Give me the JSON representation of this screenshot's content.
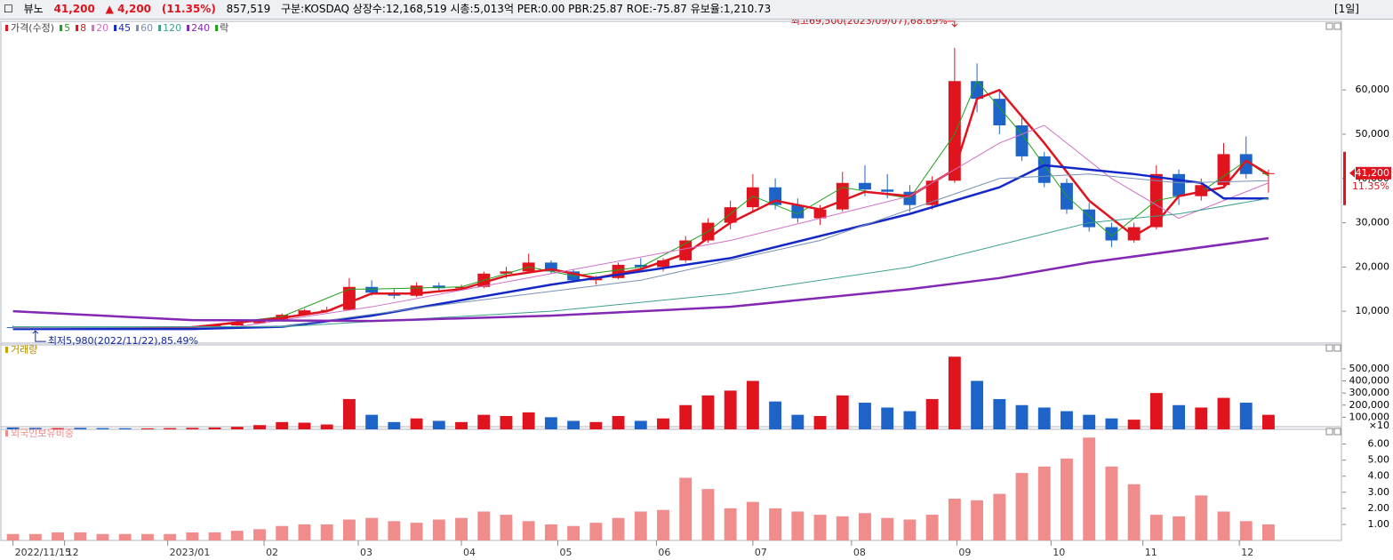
{
  "header": {
    "name": "뷰노",
    "price": "41,200",
    "change": "▲ 4,200",
    "rate": "(11.35%)",
    "volume": "857,519",
    "info": "구분:KOSDAQ 상장수:12,168,519 시총:5,013억 PER:0.00 PBR:25.87 ROE:-75.87 유보율:1,210.73",
    "period": "[1일]"
  },
  "chart_data": [
    {
      "type": "candlestick",
      "legend_title": "가격(수정)",
      "legend_extra": "락",
      "up_color": "#e0141e",
      "down_color": "#1e64c8",
      "ylim": [
        2400,
        74300
      ],
      "yticks": [
        {
          "value": 10000,
          "label": "10,000"
        },
        {
          "value": 20000,
          "label": "20,000"
        },
        {
          "value": 30000,
          "label": "30,000"
        },
        {
          "value": 40000,
          "label": "40,000"
        },
        {
          "value": 50000,
          "label": "50,000"
        },
        {
          "value": 60000,
          "label": "60,000"
        }
      ],
      "xlim": [
        -0.5,
        58.5
      ],
      "xticks": [
        {
          "value": 0,
          "label": "2022/11/15"
        },
        {
          "value": 2.3,
          "label": "12"
        },
        {
          "value": 6.9,
          "label": "2023/01"
        },
        {
          "value": 11.2,
          "label": "02"
        },
        {
          "value": 15.4,
          "label": "03"
        },
        {
          "value": 20,
          "label": "04"
        },
        {
          "value": 24.3,
          "label": "05"
        },
        {
          "value": 28.7,
          "label": "06"
        },
        {
          "value": 33,
          "label": "07"
        },
        {
          "value": 37.4,
          "label": "08"
        },
        {
          "value": 42.1,
          "label": "09"
        },
        {
          "value": 46.3,
          "label": "10"
        },
        {
          "value": 50.4,
          "label": "11"
        },
        {
          "value": 54.7,
          "label": "12"
        }
      ],
      "open": [
        6400,
        6300,
        6100,
        6400,
        6300,
        6200,
        6100,
        6200,
        6400,
        6600,
        6800,
        7300,
        8000,
        9200,
        10200,
        10300,
        15500,
        14200,
        13500,
        15800,
        15200,
        15500,
        18500,
        19000,
        21000,
        19000,
        17000,
        17500,
        20500,
        20000,
        21500,
        26000,
        30000,
        33500,
        38000,
        34000,
        31000,
        33000,
        39000,
        37500,
        37000,
        34000,
        39500,
        62000,
        58000,
        52000,
        45000,
        39000,
        33000,
        29000,
        26000,
        29000,
        41000,
        36000,
        38500,
        45500,
        41000
      ],
      "high": [
        6700,
        6400,
        6500,
        6600,
        6500,
        6400,
        6300,
        6500,
        6700,
        7000,
        7500,
        8200,
        9500,
        10500,
        11000,
        17500,
        17000,
        15000,
        16500,
        16500,
        16000,
        19000,
        20000,
        23000,
        21500,
        19500,
        18000,
        21000,
        22000,
        22000,
        27000,
        31000,
        35000,
        41000,
        40000,
        35500,
        34000,
        41500,
        43000,
        41000,
        38500,
        40500,
        69500,
        66000,
        60000,
        54000,
        46000,
        40000,
        34500,
        30000,
        30000,
        43000,
        42000,
        40000,
        48000,
        49500,
        42000
      ],
      "low": [
        6200,
        5980,
        6000,
        6200,
        6100,
        6000,
        5900,
        6100,
        6300,
        6500,
        6700,
        7200,
        7900,
        9000,
        9800,
        10200,
        13500,
        12800,
        13200,
        14500,
        14800,
        15200,
        17500,
        18500,
        18500,
        16500,
        16000,
        17200,
        19500,
        19000,
        21000,
        25500,
        28500,
        32500,
        33000,
        30000,
        29500,
        32500,
        36000,
        35500,
        32500,
        33000,
        39000,
        55000,
        50000,
        44000,
        38000,
        32000,
        28000,
        24500,
        25500,
        28500,
        34000,
        35000,
        38000,
        40000,
        36800
      ],
      "close": [
        6300,
        6100,
        6400,
        6300,
        6200,
        6100,
        6200,
        6400,
        6600,
        6800,
        7300,
        8000,
        9200,
        10200,
        10300,
        15500,
        14200,
        13500,
        15800,
        15200,
        15500,
        18500,
        19000,
        21000,
        19000,
        17000,
        17500,
        20500,
        20000,
        21500,
        26000,
        30000,
        33500,
        38000,
        34000,
        31000,
        33000,
        39000,
        37500,
        37000,
        34000,
        39500,
        62000,
        58000,
        52000,
        45000,
        39000,
        33000,
        29000,
        26000,
        29000,
        41000,
        36000,
        38500,
        45500,
        41000,
        41200
      ],
      "series": [
        {
          "name": "5",
          "color": "#1ea01e",
          "width": 1,
          "x": [
            0,
            8,
            12,
            15,
            16,
            20,
            23,
            25,
            28,
            31,
            33,
            35,
            37,
            40,
            42,
            43,
            45,
            47,
            49,
            51,
            53,
            55,
            56
          ],
          "values": [
            6300,
            6400,
            8800,
            15000,
            15000,
            15500,
            20000,
            18000,
            20000,
            28000,
            36000,
            32000,
            38000,
            35500,
            50000,
            62000,
            50000,
            36000,
            27000,
            35000,
            37000,
            44000,
            40500
          ]
        },
        {
          "name": "8",
          "color": "#e0141e",
          "width": 2.5,
          "x": [
            0,
            4,
            8,
            12,
            14,
            16,
            18,
            20,
            22,
            24,
            26,
            28,
            30,
            32,
            34,
            36,
            38,
            40,
            42,
            43,
            44,
            46,
            48,
            50,
            51,
            52,
            54,
            55,
            56
          ],
          "values": [
            6300,
            6200,
            6400,
            8500,
            10000,
            14000,
            14000,
            15000,
            18000,
            19500,
            17500,
            19500,
            23000,
            30000,
            35000,
            33000,
            37000,
            36000,
            42000,
            58000,
            60000,
            48000,
            35000,
            27000,
            30000,
            36000,
            38000,
            44000,
            41000
          ]
        },
        {
          "name": "20",
          "color": "#d070c8",
          "width": 1,
          "x": [
            0,
            10,
            16,
            24,
            32,
            36,
            40,
            44,
            46,
            49,
            52,
            56
          ],
          "values": [
            6300,
            6500,
            11000,
            18500,
            26000,
            31000,
            36000,
            48000,
            52000,
            40000,
            31000,
            39000
          ]
        },
        {
          "name": "45",
          "color": "#1428c8",
          "width": 2.5,
          "x": [
            0,
            8,
            12,
            16,
            24,
            32,
            40,
            44,
            46,
            50,
            53,
            54,
            56
          ],
          "values": [
            6000,
            6000,
            6500,
            9000,
            16000,
            22000,
            32000,
            38000,
            43000,
            41000,
            39000,
            35500,
            35500
          ]
        },
        {
          "name": "60",
          "color": "#7890b4",
          "width": 1,
          "x": [
            0,
            12,
            20,
            28,
            36,
            44,
            48,
            52,
            56
          ],
          "values": [
            6200,
            6600,
            12000,
            17000,
            26000,
            40000,
            41000,
            39000,
            39500
          ]
        },
        {
          "name": "120",
          "color": "#3ca08c",
          "width": 1,
          "x": [
            0,
            12,
            24,
            32,
            40,
            48,
            52,
            56
          ],
          "values": [
            6500,
            6500,
            10000,
            14000,
            20000,
            30000,
            32000,
            35500
          ]
        },
        {
          "name": "240",
          "color": "#8228b4",
          "width": 2.5,
          "x": [
            0,
            8,
            16,
            24,
            32,
            40,
            44,
            48,
            56
          ],
          "values": [
            10000,
            8000,
            7800,
            9000,
            11000,
            15000,
            17500,
            21000,
            26500
          ]
        }
      ],
      "annotations": [
        "최고69,500(2023/09/07),68.69%",
        "최저5,980(2022/11/22),85.49%"
      ],
      "last_label": "41,200",
      "last_rate": "11.35%"
    },
    {
      "type": "bar",
      "title": "거래량",
      "unit_label": "×10",
      "ylim": [
        0,
        668000
      ],
      "yticks": [
        {
          "value": 100000,
          "label": "100,000"
        },
        {
          "value": 200000,
          "label": "200,000"
        },
        {
          "value": 300000,
          "label": "300,000"
        },
        {
          "value": 400000,
          "label": "400,000"
        },
        {
          "value": 500000,
          "label": "500,000"
        }
      ],
      "values": [
        15000,
        12000,
        10000,
        12000,
        10000,
        9000,
        8000,
        10000,
        12000,
        15000,
        20000,
        35000,
        60000,
        55000,
        40000,
        250000,
        120000,
        60000,
        90000,
        70000,
        60000,
        120000,
        110000,
        140000,
        100000,
        70000,
        60000,
        110000,
        70000,
        90000,
        200000,
        280000,
        320000,
        400000,
        230000,
        120000,
        110000,
        280000,
        220000,
        180000,
        150000,
        250000,
        600000,
        400000,
        250000,
        200000,
        180000,
        150000,
        120000,
        90000,
        80000,
        300000,
        200000,
        180000,
        260000,
        220000,
        120000
      ]
    },
    {
      "type": "bar",
      "title": "외국인보유비중",
      "color": "#f08c8c",
      "ylim": [
        0,
        6.75
      ],
      "yticks": [
        {
          "value": 1,
          "label": "1.00"
        },
        {
          "value": 2,
          "label": "2.00"
        },
        {
          "value": 3,
          "label": "3.00"
        },
        {
          "value": 4,
          "label": "4.00"
        },
        {
          "value": 5,
          "label": "5.00"
        },
        {
          "value": 6,
          "label": "6.00"
        }
      ],
      "values": [
        0.4,
        0.4,
        0.5,
        0.5,
        0.4,
        0.4,
        0.4,
        0.4,
        0.5,
        0.5,
        0.6,
        0.7,
        0.9,
        1.0,
        1.0,
        1.3,
        1.4,
        1.2,
        1.1,
        1.3,
        1.4,
        1.8,
        1.6,
        1.2,
        1.0,
        0.9,
        1.1,
        1.4,
        1.8,
        1.9,
        3.9,
        3.2,
        2.0,
        2.4,
        2.0,
        1.8,
        1.6,
        1.5,
        1.7,
        1.4,
        1.3,
        1.6,
        2.6,
        2.5,
        2.9,
        4.2,
        4.6,
        5.1,
        6.4,
        4.6,
        3.5,
        1.6,
        1.5,
        2.8,
        1.8,
        1.2,
        1.0
      ]
    }
  ]
}
